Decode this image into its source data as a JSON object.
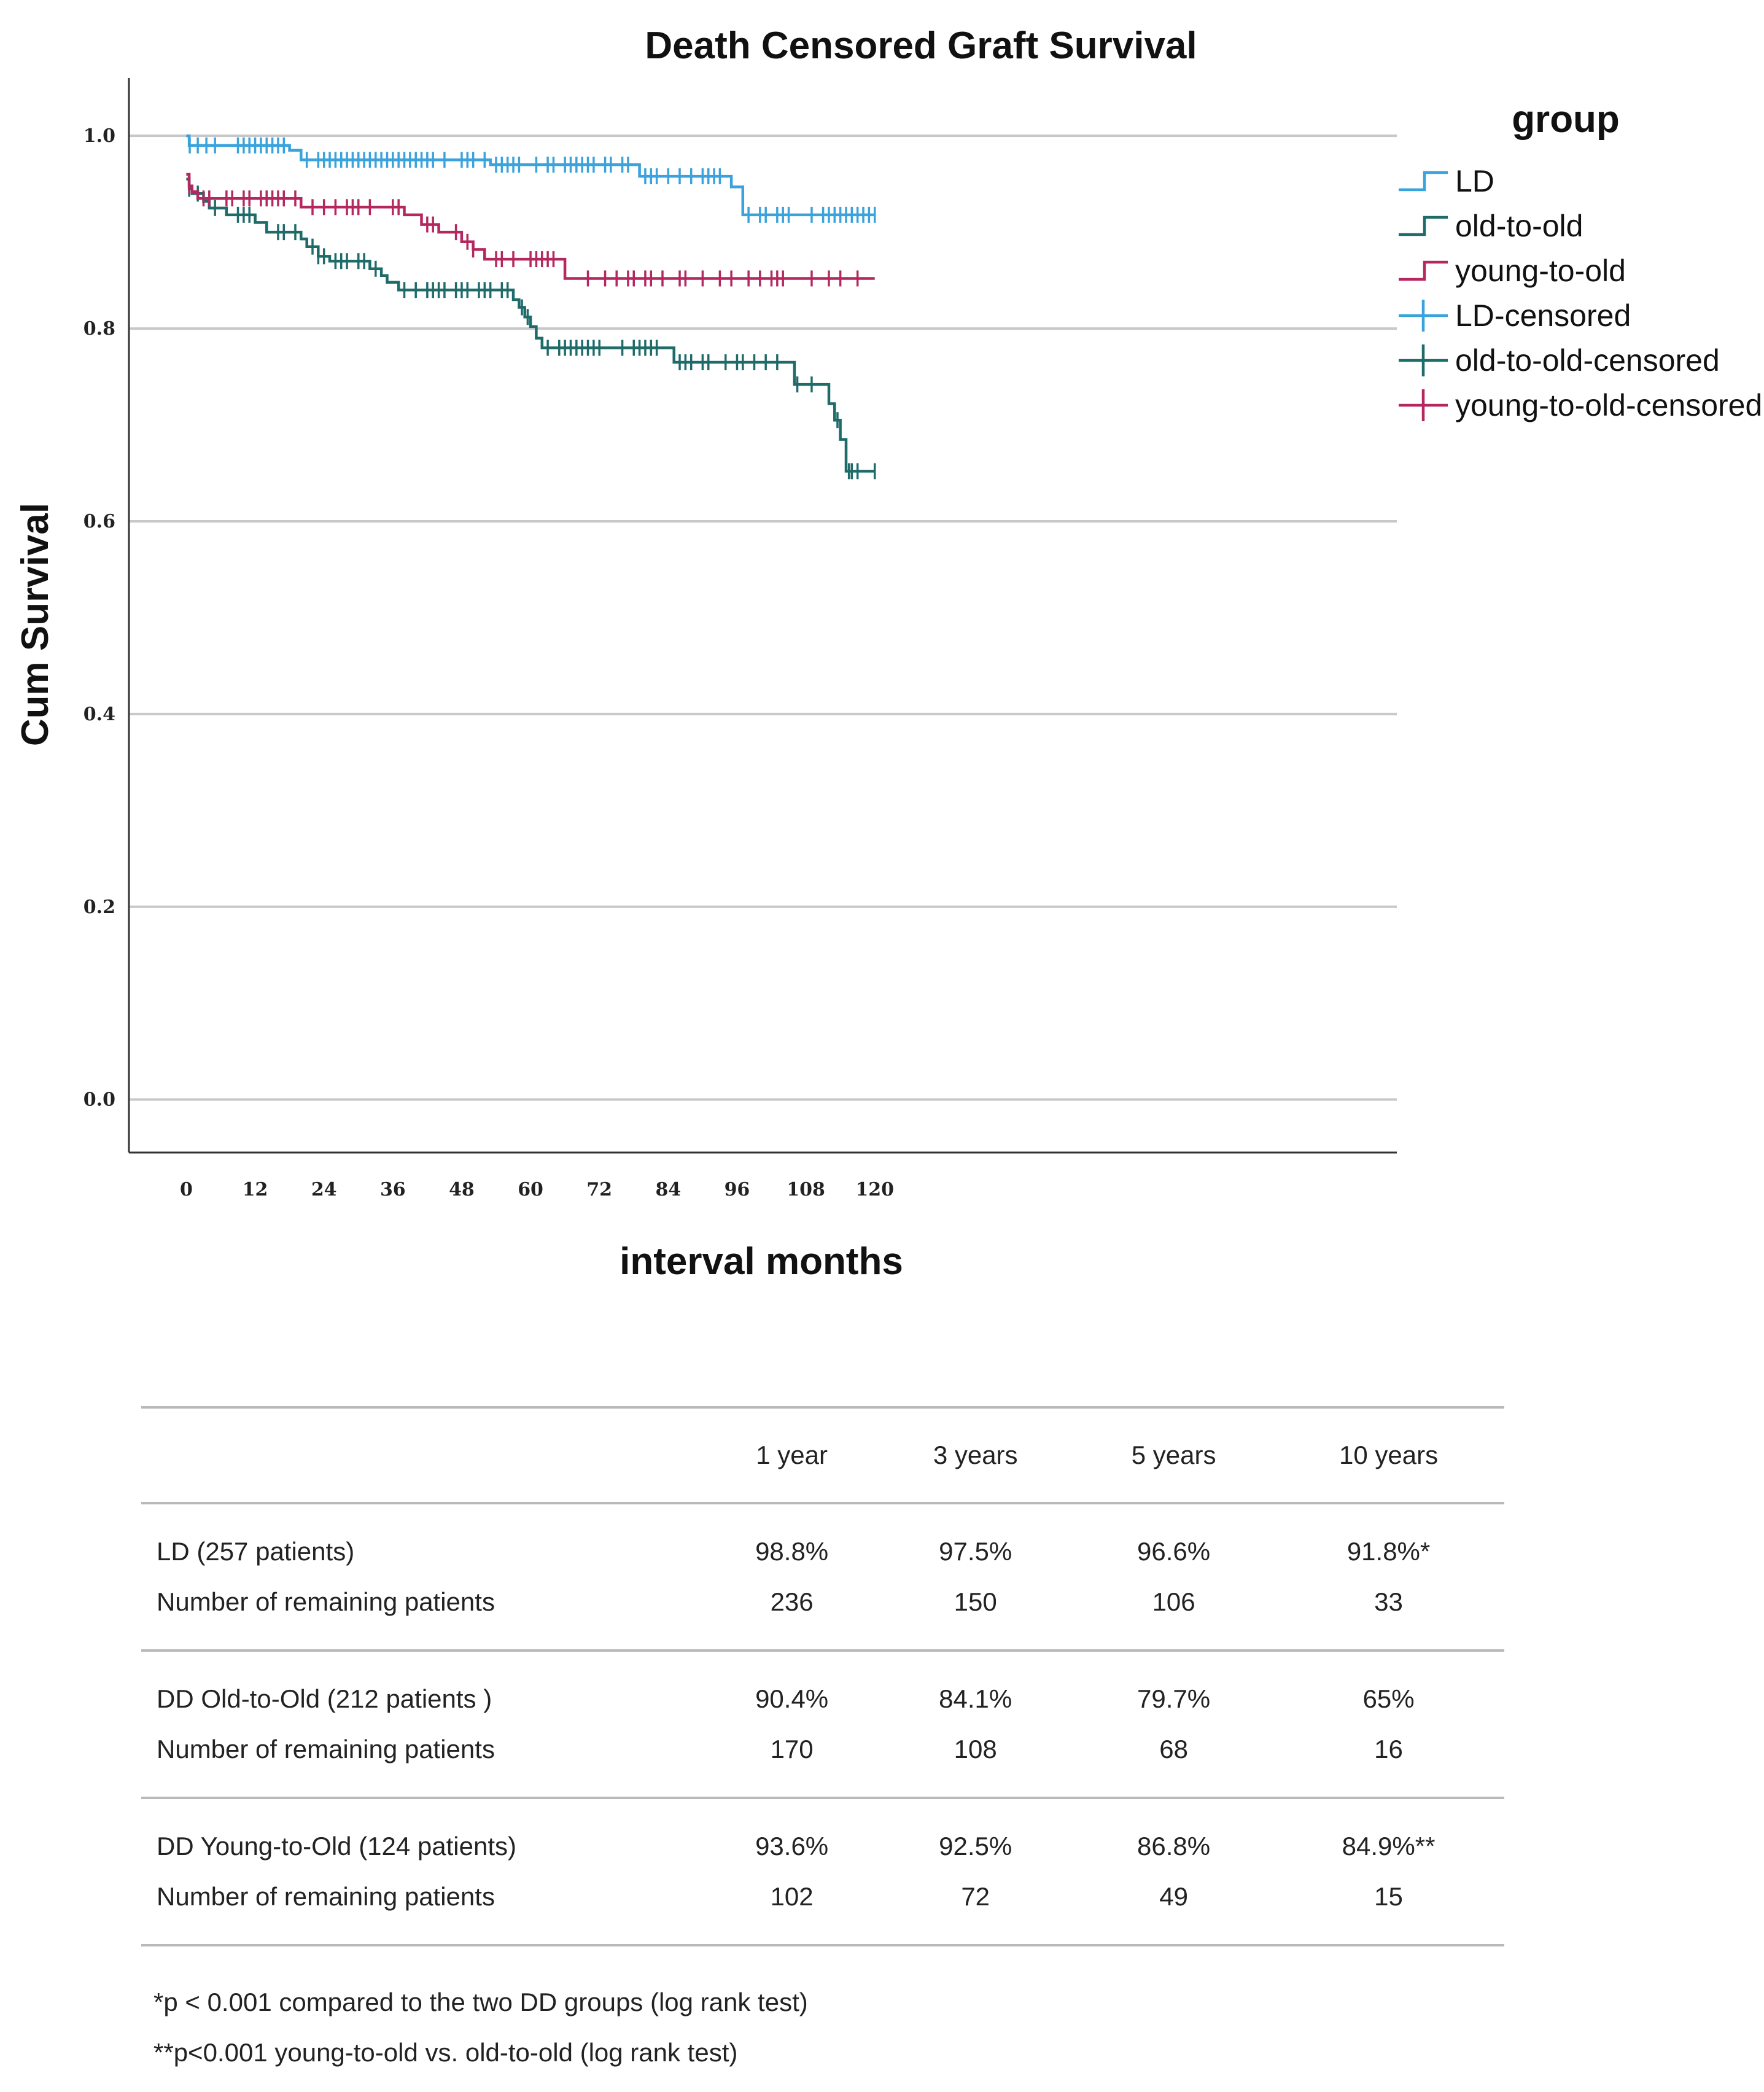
{
  "chart_data": {
    "type": "line",
    "title": "Death Censored Graft Survival",
    "xlabel": "interval months",
    "ylabel": "Cum Survival",
    "xlim": [
      -10,
      211
    ],
    "ylim": [
      -0.055,
      1.06
    ],
    "xticks": [
      0,
      12,
      24,
      36,
      48,
      60,
      72,
      84,
      96,
      108,
      120
    ],
    "yticks": [
      0.0,
      0.2,
      0.4,
      0.6,
      0.8,
      1.0
    ],
    "ytick_labels": [
      "0.0",
      "0.2",
      "0.4",
      "0.6",
      "0.8",
      "1.0"
    ],
    "grid": true,
    "legend": {
      "title": "group",
      "position": "right"
    },
    "series": [
      {
        "name": "LD",
        "censored_name": "LD-censored",
        "color": "#3aa2dc",
        "steps": [
          [
            0,
            1.0
          ],
          [
            0.5,
            0.99
          ],
          [
            18,
            0.985
          ],
          [
            20,
            0.975
          ],
          [
            53,
            0.97
          ],
          [
            79,
            0.958
          ],
          [
            95,
            0.947
          ],
          [
            97,
            0.918
          ],
          [
            120,
            0.918
          ]
        ],
        "censored": [
          0.6,
          2,
          3.5,
          5,
          9,
          10,
          11,
          12,
          13,
          14,
          15,
          16,
          17,
          21,
          23,
          24,
          25,
          26,
          27,
          28,
          29,
          30,
          31,
          32,
          33,
          34,
          35,
          36,
          37,
          38,
          39,
          40,
          41,
          42,
          43,
          45,
          48,
          49,
          50,
          52,
          54,
          55,
          56,
          57,
          58,
          61,
          63,
          64,
          66,
          67,
          68,
          69,
          70,
          71,
          73,
          74,
          76,
          77,
          80,
          81,
          82,
          84,
          86,
          88,
          90,
          91,
          92,
          93,
          98,
          100,
          101,
          103,
          104,
          105,
          109,
          111,
          112,
          113,
          114,
          115,
          116,
          117,
          118,
          119,
          120
        ]
      },
      {
        "name": "old-to-old",
        "censored_name": "old-to-old-censored",
        "color": "#1e6b69",
        "steps": [
          [
            0,
            0.955
          ],
          [
            0.5,
            0.945
          ],
          [
            1,
            0.94
          ],
          [
            3,
            0.932
          ],
          [
            4,
            0.925
          ],
          [
            7,
            0.918
          ],
          [
            12,
            0.91
          ],
          [
            14,
            0.9
          ],
          [
            20,
            0.893
          ],
          [
            21,
            0.885
          ],
          [
            23,
            0.875
          ],
          [
            25,
            0.87
          ],
          [
            32,
            0.862
          ],
          [
            34,
            0.855
          ],
          [
            35,
            0.848
          ],
          [
            37,
            0.84
          ],
          [
            57,
            0.83
          ],
          [
            58,
            0.822
          ],
          [
            59,
            0.812
          ],
          [
            60,
            0.802
          ],
          [
            61,
            0.79
          ],
          [
            62,
            0.78
          ],
          [
            64,
            0.78
          ],
          [
            85,
            0.765
          ],
          [
            106,
            0.742
          ],
          [
            112,
            0.722
          ],
          [
            113,
            0.705
          ],
          [
            114,
            0.685
          ],
          [
            115,
            0.652
          ],
          [
            120,
            0.652
          ]
        ],
        "censored": [
          0.5,
          2,
          5,
          9,
          10,
          11,
          16,
          17,
          19,
          22,
          23,
          24,
          26,
          27,
          28,
          30,
          31,
          33,
          38,
          40,
          42,
          43,
          44,
          45,
          47,
          48,
          49,
          51,
          52,
          53,
          55,
          56,
          58.5,
          59.5,
          63,
          65,
          66,
          67,
          68,
          69,
          70,
          71,
          72,
          76,
          78,
          79,
          80,
          81,
          82,
          86,
          87,
          88,
          90,
          91,
          94,
          96,
          97,
          99,
          101,
          103,
          106.5,
          109,
          113.5,
          115.5,
          116,
          117,
          120
        ]
      },
      {
        "name": "young-to-old",
        "censored_name": "young-to-old-censored",
        "color": "#b5285f",
        "steps": [
          [
            0,
            0.96
          ],
          [
            0.5,
            0.948
          ],
          [
            1,
            0.942
          ],
          [
            2,
            0.935
          ],
          [
            20,
            0.926
          ],
          [
            38,
            0.918
          ],
          [
            41,
            0.908
          ],
          [
            44,
            0.9
          ],
          [
            48,
            0.89
          ],
          [
            50,
            0.882
          ],
          [
            52,
            0.872
          ],
          [
            66,
            0.852
          ],
          [
            120,
            0.852
          ]
        ],
        "censored": [
          0.5,
          3,
          4,
          7,
          8,
          10,
          11,
          13,
          14,
          15,
          16,
          17,
          19,
          22,
          24,
          26,
          28,
          29,
          30,
          32,
          36,
          37,
          42,
          43,
          47,
          49,
          50,
          54,
          55,
          57,
          60,
          61,
          62,
          63,
          64,
          70,
          73,
          75,
          77,
          78,
          80,
          81,
          83,
          86,
          87,
          90,
          93,
          95,
          98,
          100,
          102,
          103,
          104,
          109,
          112,
          114,
          117
        ]
      }
    ]
  },
  "table": {
    "headers": [
      "",
      "1 year",
      "3 years",
      "5 years",
      "10 years"
    ],
    "rows": [
      {
        "label": "LD (257 patients)",
        "values": [
          "98.8%",
          "97.5%",
          "96.6%",
          "91.8%*"
        ]
      },
      {
        "label": "Number of remaining patients",
        "values": [
          "236",
          "150",
          "106",
          "33"
        ]
      },
      {
        "label": "DD Old-to-Old (212 patients )",
        "values": [
          "90.4%",
          "84.1%",
          "79.7%",
          "65%"
        ]
      },
      {
        "label": "Number of remaining patients",
        "values": [
          "170",
          "108",
          "68",
          "16"
        ]
      },
      {
        "label": "DD Young-to-Old (124 patients)",
        "values": [
          "93.6%",
          "92.5%",
          "86.8%",
          "84.9%**"
        ]
      },
      {
        "label": "Number of remaining patients",
        "values": [
          "102",
          "72",
          "49",
          "15"
        ]
      }
    ]
  },
  "footnotes": [
    "*p < 0.001 compared to the two DD groups (log rank test)",
    "**p<0.001 young-to-old vs. old-to-old (log rank test)"
  ]
}
